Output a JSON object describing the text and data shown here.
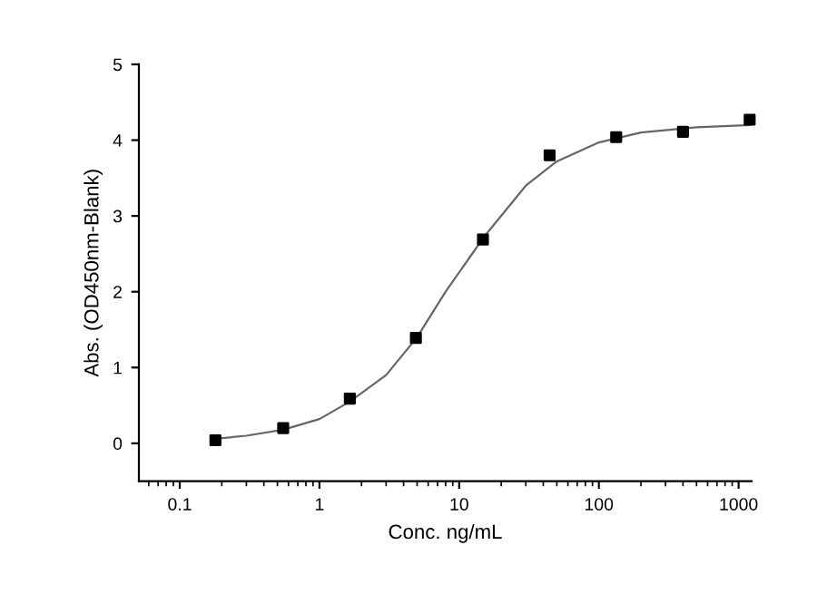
{
  "chart_data": {
    "type": "scatter",
    "xlabel": "Conc. ng/mL",
    "ylabel": "Abs. (OD450nm-Blank)",
    "log": "x",
    "xlim": [
      0.051,
      1240
    ],
    "xticks": [
      0.1,
      1,
      10,
      100,
      1000
    ],
    "ylim": [
      -0.5,
      5
    ],
    "yticks": [
      0,
      1,
      2,
      3,
      4,
      5
    ],
    "grid": false,
    "marker": "square",
    "series": [
      {
        "color": "#000000",
        "x": [
          0.18,
          0.55,
          1.65,
          4.9,
          14.8,
          44.4,
          133,
          400,
          1200
        ],
        "values": [
          0.04,
          0.2,
          0.59,
          1.39,
          2.69,
          3.8,
          4.04,
          4.11,
          4.27
        ]
      },
      {
        "type": "line",
        "color": "#666666",
        "marker": "none",
        "line_style": "solid",
        "x": [
          0.18,
          0.3,
          0.55,
          1,
          1.65,
          3,
          5,
          8,
          15,
          30,
          50,
          100,
          200,
          500,
          1200
        ],
        "values": [
          0.06,
          0.1,
          0.18,
          0.32,
          0.55,
          0.9,
          1.4,
          2.0,
          2.72,
          3.4,
          3.72,
          3.97,
          4.1,
          4.17,
          4.2
        ]
      }
    ]
  }
}
